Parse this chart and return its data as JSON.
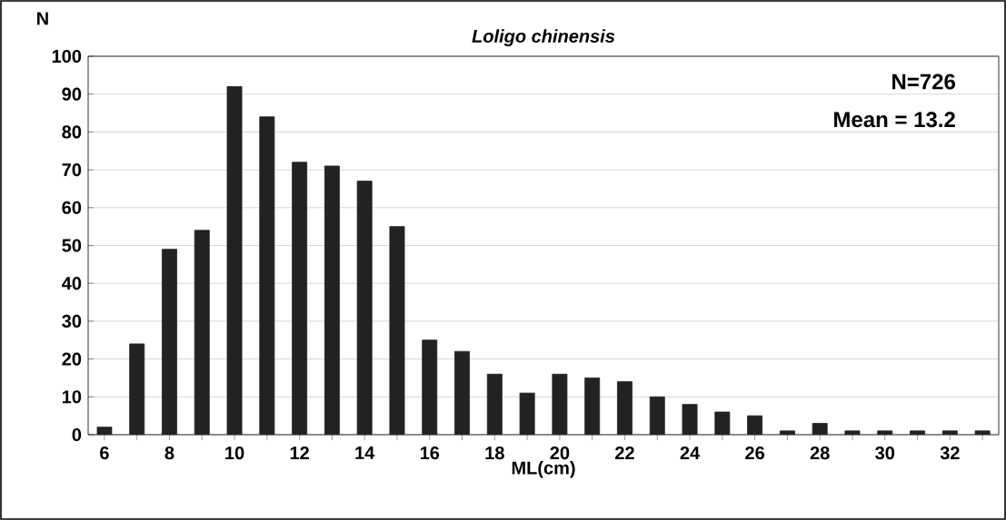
{
  "chart_data": {
    "type": "bar",
    "title": "*Loligo chinensis*",
    "xlabel": "ML(cm)",
    "ylabel": "N",
    "categories": [
      "6",
      null,
      "8",
      null,
      "10",
      null,
      "12",
      null,
      "14",
      null,
      "16",
      null,
      "18",
      null,
      "20",
      null,
      "22",
      null,
      "24",
      null,
      "26",
      null,
      "28",
      null,
      "30",
      null,
      "32",
      null
    ],
    "values": [
      2,
      24,
      49,
      54,
      92,
      84,
      72,
      71,
      67,
      55,
      25,
      22,
      16,
      11,
      16,
      15,
      14,
      10,
      8,
      6,
      5,
      1,
      3,
      1,
      1,
      1,
      1,
      1
    ],
    "color": "#222222",
    "ylim": [
      0,
      100
    ],
    "yticks": [
      0,
      10,
      20,
      30,
      40,
      50,
      60,
      70,
      80,
      90,
      100
    ],
    "grid": "y",
    "annotations": [
      "N=726",
      "Mean = 13.2"
    ]
  }
}
